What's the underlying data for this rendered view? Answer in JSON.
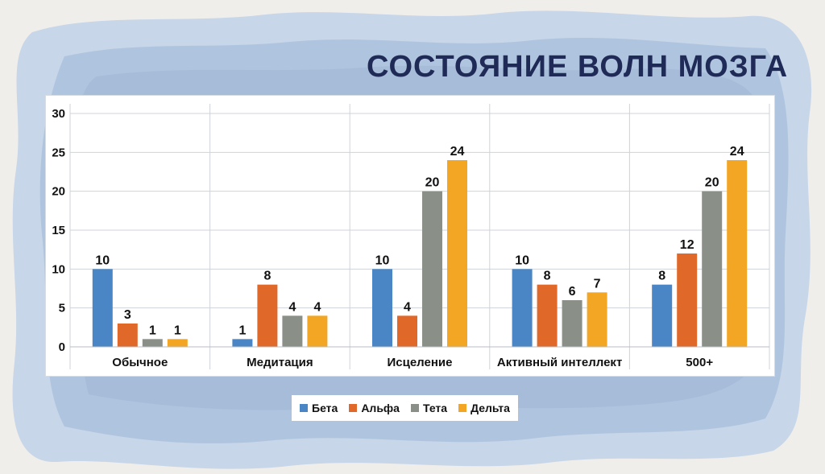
{
  "colors": {
    "title": "#1f2a57",
    "wash_light": "#c7d6e8",
    "wash_mid": "#9eb6d4",
    "paper": "#efeeea",
    "grid": "#cfd3d8"
  },
  "chart_data": {
    "type": "bar",
    "title": "СОСТОЯНИЕ ВОЛН МОЗГА",
    "categories": [
      "Обычное",
      "Медитация",
      "Исцеление",
      "Активный интеллект",
      "500+"
    ],
    "series": [
      {
        "name": "Бета",
        "color": "#4a86c5",
        "values": [
          10,
          1,
          10,
          10,
          8
        ]
      },
      {
        "name": "Альфа",
        "color": "#e0692a",
        "values": [
          3,
          8,
          4,
          8,
          12
        ]
      },
      {
        "name": "Тета",
        "color": "#8a9088",
        "values": [
          1,
          4,
          20,
          6,
          20
        ]
      },
      {
        "name": "Дельта",
        "color": "#f2a623",
        "values": [
          1,
          4,
          24,
          7,
          24
        ]
      }
    ],
    "ylim": [
      0,
      30
    ],
    "yticks": [
      0,
      5,
      10,
      15,
      20,
      25,
      30
    ],
    "grid": true,
    "legend_position": "bottom"
  }
}
